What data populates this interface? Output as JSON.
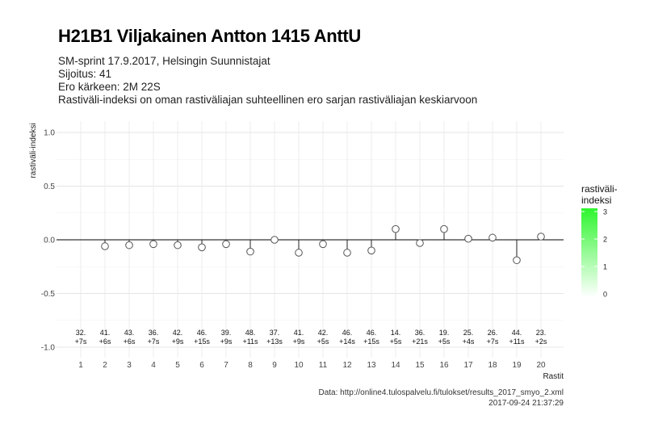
{
  "header": {
    "title": "H21B1 Viljakainen Antton 1415 AnttU",
    "subtitle_lines": [
      "SM-sprint 17.9.2017, Helsingin Suunnistajat",
      "Sijoitus: 41",
      "Ero kärkeen: 2M 22S",
      "Rastiväli-indeksi on oman rastiväliajan suhteellinen ero sarjan rastiväliajan keskiarvoon"
    ]
  },
  "footer": {
    "source": "Data: http://online4.tulospalvelu.fi/tulokset/results_2017_smyo_2.xml",
    "timestamp": "2017-09-24 21:37:29"
  },
  "chart_data": {
    "type": "scatter",
    "xlabel": "Rastit",
    "ylabel": "rastiväli-indeksi",
    "ylim": [
      -1.0,
      1.0
    ],
    "y_ticks": [
      "1.0",
      "0.5",
      "0.0",
      "-0.5",
      "-1.0"
    ],
    "grid": true,
    "x": [
      1,
      2,
      3,
      4,
      5,
      6,
      7,
      8,
      9,
      10,
      11,
      12,
      13,
      14,
      15,
      16,
      17,
      18,
      19,
      20
    ],
    "x_tick_labels": [
      "1",
      "2",
      "3",
      "4",
      "5",
      "6",
      "7",
      "8",
      "9",
      "10",
      "11",
      "12",
      "13",
      "14",
      "15",
      "16",
      "17",
      "18",
      "19",
      "20"
    ],
    "y": [
      null,
      -0.06,
      -0.05,
      -0.04,
      -0.05,
      -0.07,
      -0.04,
      -0.11,
      0.0,
      -0.12,
      -0.04,
      -0.12,
      -0.1,
      0.1,
      -0.03,
      0.1,
      0.01,
      0.02,
      -0.19,
      0.03
    ],
    "point_labels": [
      [
        "32.",
        "+7s"
      ],
      [
        "41.",
        "+6s"
      ],
      [
        "43.",
        "+6s"
      ],
      [
        "36.",
        "+7s"
      ],
      [
        "42.",
        "+9s"
      ],
      [
        "46.",
        "+15s"
      ],
      [
        "39.",
        "+9s"
      ],
      [
        "48.",
        "+11s"
      ],
      [
        "37.",
        "+13s"
      ],
      [
        "41.",
        "+9s"
      ],
      [
        "42.",
        "+5s"
      ],
      [
        "46.",
        "+14s"
      ],
      [
        "46.",
        "+15s"
      ],
      [
        "14.",
        "+5s"
      ],
      [
        "36.",
        "+21s"
      ],
      [
        "19.",
        "+5s"
      ],
      [
        "25.",
        "+4s"
      ],
      [
        "26.",
        "+7s"
      ],
      [
        "44.",
        "+11s"
      ],
      [
        "23.",
        "+2s"
      ]
    ],
    "legend": {
      "title_lines": [
        "rastiväli-",
        "indeksi"
      ],
      "ticks": [
        "3",
        "2",
        "1",
        "0"
      ],
      "color_high": "#2ef52e",
      "color_low": "#ffffff",
      "placement": "right"
    },
    "colors": {
      "point_fill": "#ffffff",
      "point_stroke": "#555555",
      "zero_line": "#000000"
    }
  }
}
